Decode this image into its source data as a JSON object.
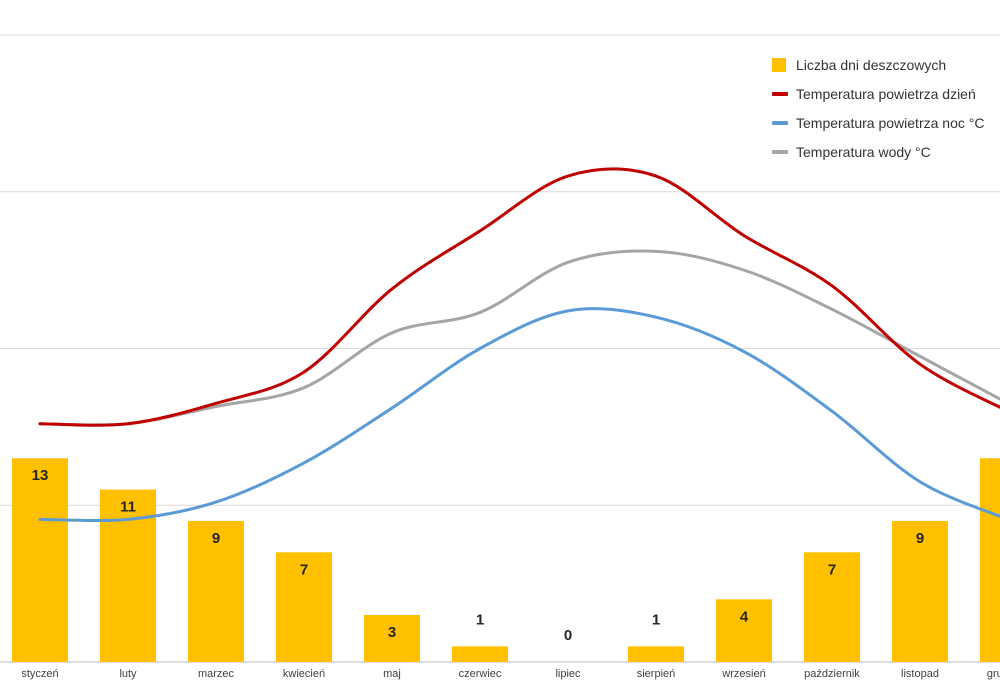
{
  "chart_data": {
    "type": "bar",
    "categories": [
      "styczeń",
      "luty",
      "marzec",
      "kwiecień",
      "maj",
      "czerwiec",
      "lipiec",
      "sierpień",
      "wrzesień",
      "październik",
      "listopad",
      "grudzień"
    ],
    "series": [
      {
        "name": "Liczba dni deszczowych",
        "type": "bar",
        "color": "#FFC000",
        "values": [
          13,
          11,
          9,
          7,
          3,
          1,
          0,
          1,
          4,
          7,
          9,
          13
        ],
        "labels": [
          "13",
          "11",
          "9",
          "7",
          "3",
          "1",
          "0",
          "1",
          "4",
          "7",
          "9",
          "13"
        ]
      },
      {
        "name": "Temperatura powietrza dzień",
        "type": "line",
        "color": "#C00000",
        "values": [
          15.2,
          15.2,
          16.5,
          18.5,
          23.8,
          27.5,
          31.0,
          31.0,
          27.2,
          24.0,
          19.0,
          16.0
        ]
      },
      {
        "name": "Temperatura powietrza noc °C",
        "type": "line",
        "color": "#5B9BD5",
        "values": [
          9.1,
          9.1,
          10.2,
          12.7,
          16.2,
          20.0,
          22.4,
          22.0,
          19.8,
          16.0,
          11.5,
          9.1
        ]
      },
      {
        "name": "Temperatura wody °C",
        "type": "line",
        "color": "#A5A5A5",
        "values": [
          15.2,
          15.2,
          16.3,
          17.5,
          21.0,
          22.3,
          25.5,
          26.2,
          25.0,
          22.5,
          19.5,
          16.5
        ]
      }
    ],
    "ylim": [
      0,
      40
    ],
    "grid": true,
    "legend": "top-right"
  }
}
